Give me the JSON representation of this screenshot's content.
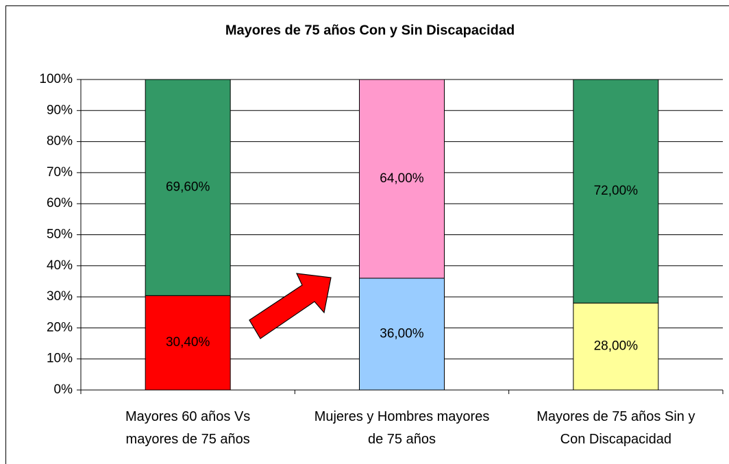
{
  "chart_data": {
    "type": "stacked_bar",
    "title": "Mayores de 75 años Con y Sin Discapacidad",
    "categories": [
      "Mayores 60 años Vs mayores de 75 años",
      "Mujeres y Hombres mayores de 75 años",
      "Mayores de 75 años Sin y Con Discapacidad"
    ],
    "series": [
      {
        "colors": [
          "#ff0000",
          "#99ccff",
          "#ffff99"
        ],
        "values": [
          30.4,
          36,
          28
        ],
        "value_labels": [
          "30,40%",
          "36,00%",
          "28,00%"
        ]
      },
      {
        "colors": [
          "#339966",
          "#ff99cc",
          "#339966"
        ],
        "values": [
          69.6,
          64,
          72
        ],
        "value_labels": [
          "69,60%",
          "64,00%",
          "72,00%"
        ]
      }
    ],
    "ylim": [
      0,
      100
    ],
    "yticks": [
      {
        "value": 0,
        "label": "0%"
      },
      {
        "value": 10,
        "label": "10%"
      },
      {
        "value": 20,
        "label": "20%"
      },
      {
        "value": 30,
        "label": "30%"
      },
      {
        "value": 40,
        "label": "40%"
      },
      {
        "value": 50,
        "label": "50%"
      },
      {
        "value": 60,
        "label": "60%"
      },
      {
        "value": 70,
        "label": "70%"
      },
      {
        "value": 80,
        "label": "80%"
      },
      {
        "value": 90,
        "label": "90%"
      },
      {
        "value": 100,
        "label": "100%"
      }
    ],
    "grid": true
  }
}
